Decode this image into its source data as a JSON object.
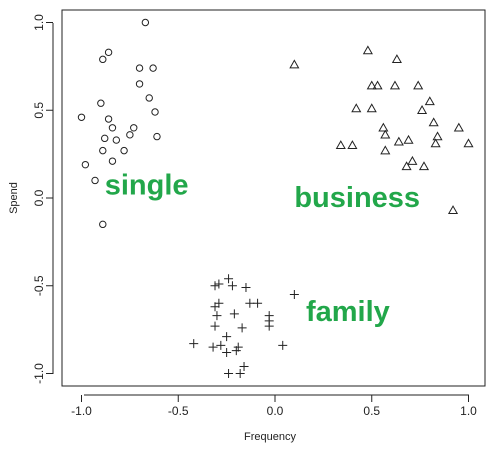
{
  "chart_data": {
    "type": "scatter",
    "title": "",
    "xlabel": "Frequency",
    "ylabel": "Spend",
    "xlim": [
      -1.05,
      1.05
    ],
    "ylim": [
      -1.07,
      1.07
    ],
    "x_ticks": [
      -1.0,
      -0.5,
      0.0,
      0.5,
      1.0
    ],
    "x_tick_labels": [
      "-1.0",
      "-0.5",
      "0.0",
      "0.5",
      "1.0"
    ],
    "y_ticks": [
      -1.0,
      -0.5,
      0.0,
      0.5,
      1.0
    ],
    "y_tick_labels": [
      "-1.0",
      "-0.5",
      "0.0",
      "0.5",
      "1.0"
    ],
    "grid": false,
    "annotation_color": "#22a74a",
    "series": [
      {
        "marker": "circle",
        "label": "single",
        "points": [
          [
            -0.67,
            1.0
          ],
          [
            -0.86,
            0.83
          ],
          [
            -0.89,
            0.79
          ],
          [
            -0.7,
            0.74
          ],
          [
            -0.63,
            0.74
          ],
          [
            -0.7,
            0.65
          ],
          [
            -0.65,
            0.57
          ],
          [
            -0.9,
            0.54
          ],
          [
            -0.62,
            0.49
          ],
          [
            -1.0,
            0.46
          ],
          [
            -0.86,
            0.45
          ],
          [
            -0.84,
            0.4
          ],
          [
            -0.73,
            0.4
          ],
          [
            -0.75,
            0.36
          ],
          [
            -0.88,
            0.34
          ],
          [
            -0.82,
            0.33
          ],
          [
            -0.61,
            0.35
          ],
          [
            -0.89,
            0.27
          ],
          [
            -0.78,
            0.27
          ],
          [
            -0.84,
            0.21
          ],
          [
            -0.98,
            0.19
          ],
          [
            -0.93,
            0.1
          ],
          [
            -0.89,
            -0.15
          ]
        ]
      },
      {
        "marker": "triangle",
        "label": "business",
        "points": [
          [
            0.1,
            0.76
          ],
          [
            0.48,
            0.84
          ],
          [
            0.63,
            0.79
          ],
          [
            0.5,
            0.64
          ],
          [
            0.53,
            0.64
          ],
          [
            0.62,
            0.64
          ],
          [
            0.74,
            0.64
          ],
          [
            0.42,
            0.51
          ],
          [
            0.5,
            0.51
          ],
          [
            0.8,
            0.55
          ],
          [
            0.76,
            0.5
          ],
          [
            0.56,
            0.4
          ],
          [
            0.57,
            0.36
          ],
          [
            0.82,
            0.43
          ],
          [
            0.95,
            0.4
          ],
          [
            0.84,
            0.35
          ],
          [
            0.69,
            0.33
          ],
          [
            0.34,
            0.3
          ],
          [
            0.4,
            0.3
          ],
          [
            0.57,
            0.27
          ],
          [
            0.83,
            0.31
          ],
          [
            0.64,
            0.32
          ],
          [
            1.0,
            0.31
          ],
          [
            0.71,
            0.21
          ],
          [
            0.68,
            0.18
          ],
          [
            0.77,
            0.18
          ],
          [
            0.92,
            -0.07
          ]
        ]
      },
      {
        "marker": "plus",
        "label": "family",
        "points": [
          [
            -0.24,
            -0.46
          ],
          [
            -0.29,
            -0.49
          ],
          [
            -0.31,
            -0.5
          ],
          [
            -0.22,
            -0.5
          ],
          [
            -0.15,
            -0.51
          ],
          [
            0.1,
            -0.55
          ],
          [
            -0.13,
            -0.6
          ],
          [
            -0.09,
            -0.6
          ],
          [
            -0.29,
            -0.6
          ],
          [
            -0.31,
            -0.62
          ],
          [
            -0.21,
            -0.66
          ],
          [
            -0.3,
            -0.67
          ],
          [
            -0.03,
            -0.67
          ],
          [
            -0.03,
            -0.7
          ],
          [
            -0.31,
            -0.73
          ],
          [
            -0.17,
            -0.74
          ],
          [
            -0.03,
            -0.73
          ],
          [
            -0.25,
            -0.79
          ],
          [
            -0.28,
            -0.84
          ],
          [
            -0.42,
            -0.83
          ],
          [
            -0.19,
            -0.85
          ],
          [
            0.04,
            -0.84
          ],
          [
            -0.32,
            -0.85
          ],
          [
            -0.2,
            -0.87
          ],
          [
            -0.25,
            -0.88
          ],
          [
            -0.16,
            -0.96
          ],
          [
            -0.24,
            -1.0
          ],
          [
            -0.18,
            -1.0
          ]
        ]
      }
    ],
    "annotations": [
      {
        "text": "single",
        "x": -0.88,
        "y": 0.02
      },
      {
        "text": "business",
        "x": 0.1,
        "y": -0.05
      },
      {
        "text": "family",
        "x": 0.16,
        "y": -0.7
      }
    ]
  }
}
